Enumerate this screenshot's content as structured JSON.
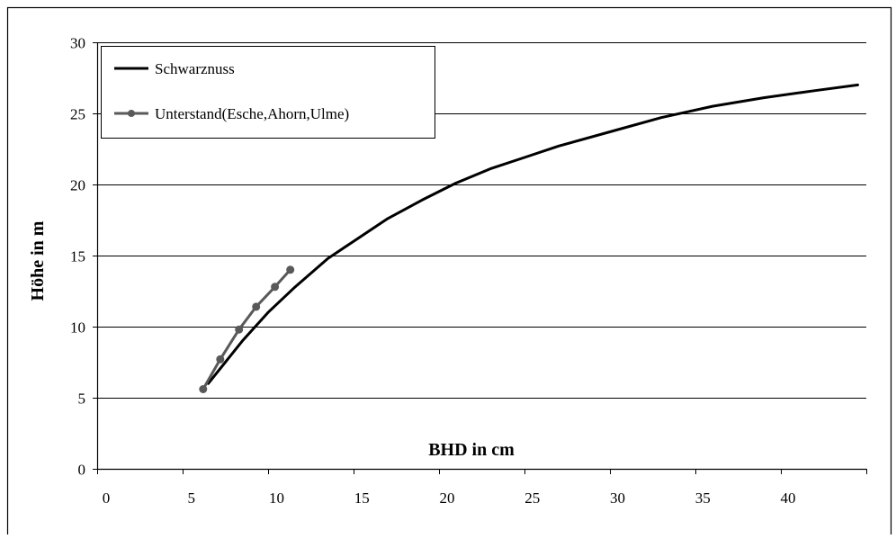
{
  "chart_data": {
    "type": "line",
    "title": "",
    "xlabel": "BHD in cm",
    "ylabel": "Höhe in m",
    "xlim": [
      0,
      45
    ],
    "ylim": [
      0,
      30
    ],
    "x_ticks": [
      0,
      5,
      10,
      15,
      20,
      25,
      30,
      35,
      40
    ],
    "y_ticks": [
      0,
      5,
      10,
      15,
      20,
      25,
      30
    ],
    "x_tick_labels": [
      "0",
      "5",
      "10",
      "15",
      "20",
      "25",
      "30",
      "35",
      "40"
    ],
    "y_tick_labels": [
      "0",
      "5",
      "10",
      "15",
      "20",
      "25",
      "30"
    ],
    "grid": "horizontal",
    "legend_position": "top-left",
    "series": [
      {
        "name": "Schwarznuss",
        "color": "#000000",
        "marker": "none",
        "points": [
          [
            6.5,
            6.0
          ],
          [
            7.5,
            7.5
          ],
          [
            8.5,
            9.0
          ],
          [
            10.0,
            11.0
          ],
          [
            11.5,
            12.7
          ],
          [
            13.5,
            14.8
          ],
          [
            15.0,
            16.0
          ],
          [
            17.0,
            17.6
          ],
          [
            19.0,
            18.9
          ],
          [
            21.0,
            20.1
          ],
          [
            23.0,
            21.1
          ],
          [
            25.0,
            21.9
          ],
          [
            27.0,
            22.7
          ],
          [
            30.0,
            23.7
          ],
          [
            33.0,
            24.7
          ],
          [
            36.0,
            25.5
          ],
          [
            39.0,
            26.1
          ],
          [
            42.0,
            26.6
          ],
          [
            44.5,
            27.0
          ]
        ]
      },
      {
        "name": "Unterstand(Esche,Ahorn,Ulme)",
        "color": "#595959",
        "marker": "circle",
        "points": [
          [
            6.2,
            5.6
          ],
          [
            7.2,
            7.7
          ],
          [
            8.3,
            9.8
          ],
          [
            9.3,
            11.4
          ],
          [
            10.4,
            12.8
          ],
          [
            11.3,
            14.0
          ]
        ]
      }
    ]
  }
}
